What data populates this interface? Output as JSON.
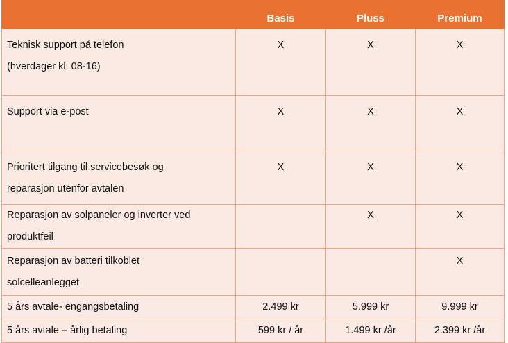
{
  "header": {
    "feature": "",
    "plans": [
      "Basis",
      "Pluss",
      "Premium"
    ]
  },
  "rows": [
    {
      "feature_lines": [
        "Teknisk support på telefon",
        "(hverdager kl. 08-16)"
      ],
      "values": [
        "X",
        "X",
        "X"
      ]
    },
    {
      "feature_lines": [
        "Support via e-post"
      ],
      "values": [
        "X",
        "X",
        "X"
      ]
    },
    {
      "feature_lines": [
        "Prioritert tilgang til servicebesøk og",
        "reparasjon utenfor avtalen"
      ],
      "values": [
        "X",
        "X",
        "X"
      ]
    },
    {
      "feature_lines": [
        "Reparasjon av solpaneler og inverter ved",
        "produktfeil"
      ],
      "values": [
        "",
        "X",
        "X"
      ]
    },
    {
      "feature_lines": [
        "Reparasjon av batteri tilkoblet",
        "solcelleanlegget"
      ],
      "values": [
        "",
        "",
        "X"
      ]
    },
    {
      "feature_lines": [
        "5 års avtale- engangsbetaling"
      ],
      "values": [
        "2.499 kr",
        "5.999 kr",
        "9.999 kr"
      ]
    },
    {
      "feature_lines": [
        "5 års avtale – årlig betaling"
      ],
      "values": [
        "599 kr / år",
        "1.499 kr /år",
        "2.399 kr /år"
      ]
    }
  ],
  "colors": {
    "header_bg": "#E97132",
    "cell_bg": "#FBE9E4",
    "border": "#F1A57E"
  }
}
